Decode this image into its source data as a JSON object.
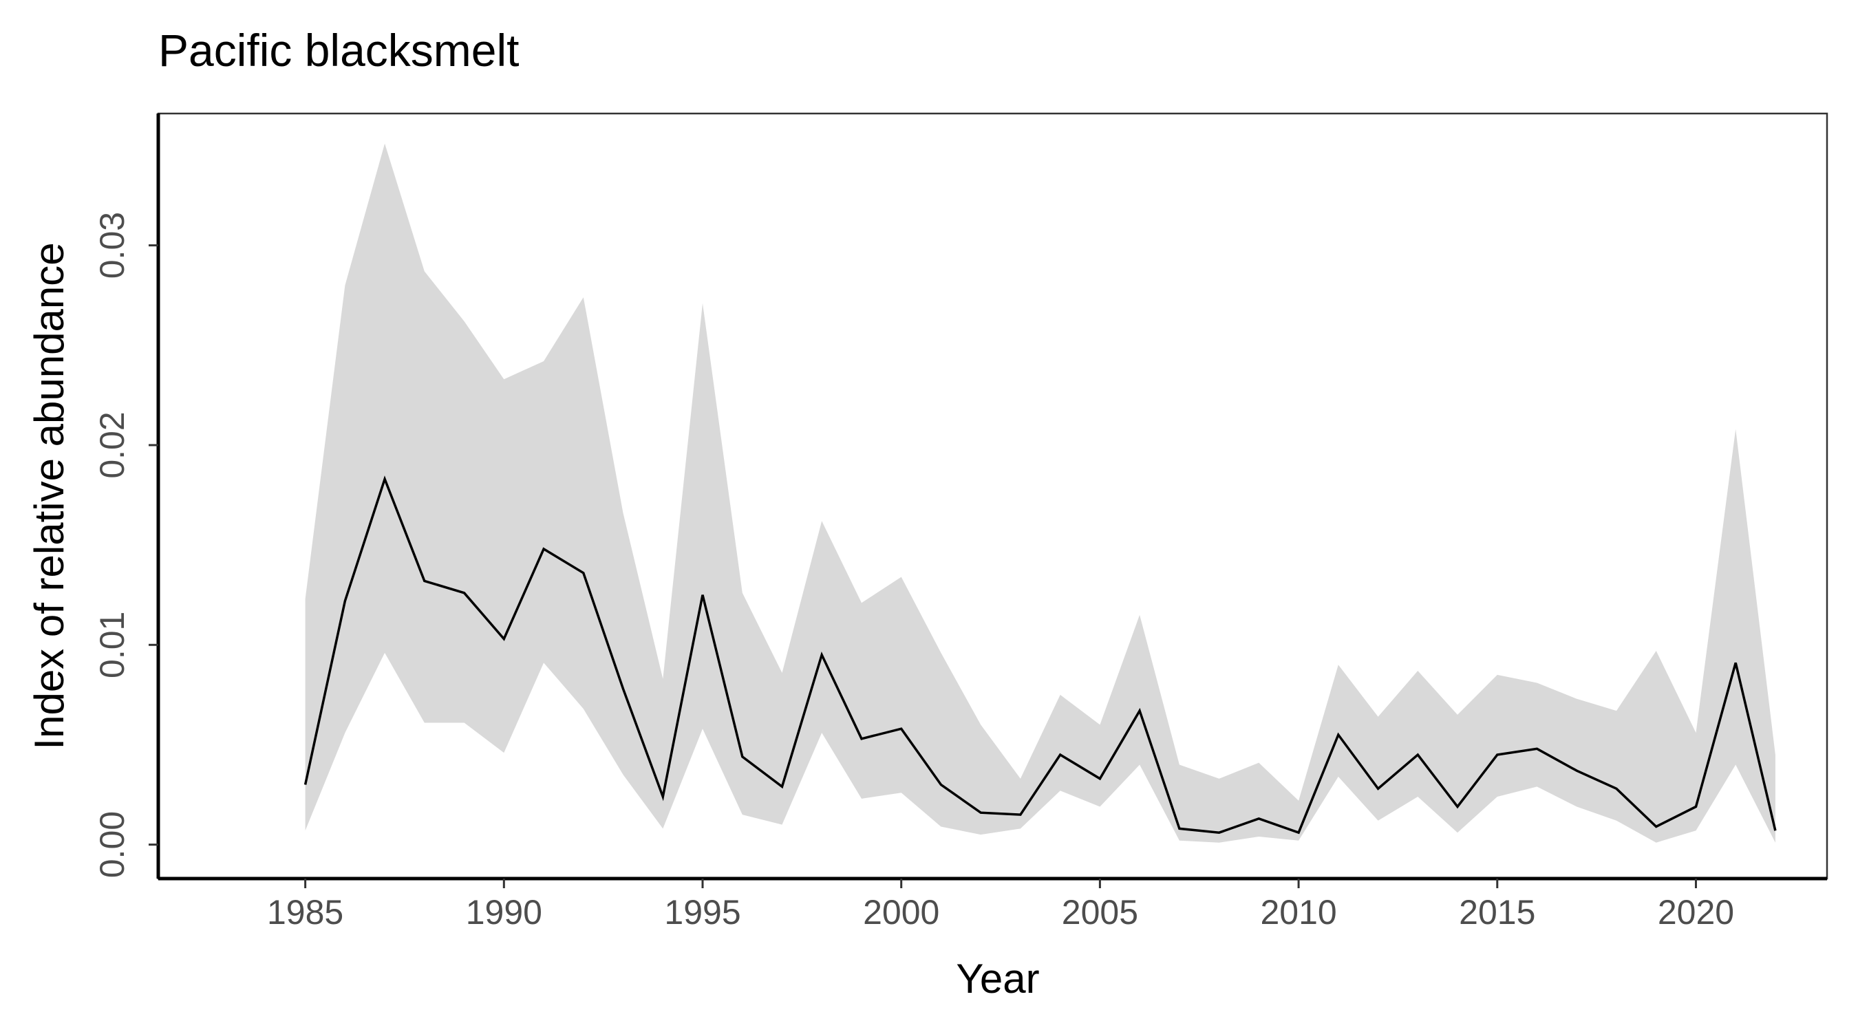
{
  "chart_data": {
    "type": "area",
    "title": "Pacific blacksmelt",
    "xlabel": "Year",
    "ylabel": "Index of relative abundance",
    "xlim": [
      1981.3,
      2023.3
    ],
    "ylim": [
      -0.0017,
      0.0366
    ],
    "x_ticks": [
      1985,
      1990,
      1995,
      2000,
      2005,
      2010,
      2015,
      2020
    ],
    "x_tick_labels": [
      "1985",
      "1990",
      "1995",
      "2000",
      "2005",
      "2010",
      "2015",
      "2020"
    ],
    "y_ticks": [
      0,
      0.01,
      0.02,
      0.03
    ],
    "y_tick_labels": [
      "0.00",
      "0.01",
      "0.02",
      "0.03"
    ],
    "grid": false,
    "legend": "none",
    "colors": {
      "band": "#d9d9d9",
      "line": "#000000"
    },
    "x": [
      1985,
      1986,
      1987,
      1988,
      1989,
      1990,
      1991,
      1992,
      1993,
      1994,
      1995,
      1996,
      1997,
      1998,
      1999,
      2000,
      2001,
      2002,
      2003,
      2004,
      2005,
      2006,
      2007,
      2008,
      2009,
      2010,
      2011,
      2012,
      2013,
      2014,
      2015,
      2016,
      2017,
      2018,
      2019,
      2020,
      2021,
      2022
    ],
    "series": [
      {
        "role": "estimate",
        "values": [
          0.003,
          0.0122,
          0.0183,
          0.0132,
          0.0126,
          0.0103,
          0.0148,
          0.0136,
          0.0078,
          0.0024,
          0.0125,
          0.0044,
          0.0029,
          0.0095,
          0.0053,
          0.0058,
          0.003,
          0.0016,
          0.0015,
          0.0045,
          0.0033,
          0.0067,
          0.0008,
          0.0006,
          0.0013,
          0.0006,
          0.0055,
          0.0028,
          0.0045,
          0.0019,
          0.0045,
          0.0048,
          0.0037,
          0.0028,
          0.0009,
          0.0019,
          0.0091,
          0.0007
        ]
      },
      {
        "role": "lower",
        "values": [
          0.0007,
          0.0056,
          0.0096,
          0.0061,
          0.0061,
          0.0046,
          0.0091,
          0.0068,
          0.0035,
          0.0008,
          0.0058,
          0.0015,
          0.001,
          0.0056,
          0.0023,
          0.0026,
          0.0009,
          0.0005,
          0.0008,
          0.0027,
          0.0019,
          0.004,
          0.0002,
          0.0001,
          0.0004,
          0.0002,
          0.0034,
          0.0012,
          0.0024,
          0.0006,
          0.0024,
          0.0029,
          0.0019,
          0.0012,
          0.0001,
          0.0007,
          0.004,
          0.0001
        ]
      },
      {
        "role": "upper",
        "values": [
          0.0123,
          0.028,
          0.0351,
          0.0287,
          0.0262,
          0.0233,
          0.0242,
          0.0274,
          0.0166,
          0.0083,
          0.0271,
          0.0126,
          0.0086,
          0.0162,
          0.0121,
          0.0134,
          0.0096,
          0.006,
          0.0033,
          0.0075,
          0.006,
          0.0115,
          0.004,
          0.0033,
          0.0041,
          0.0022,
          0.009,
          0.0064,
          0.0087,
          0.0065,
          0.0085,
          0.0081,
          0.0073,
          0.0067,
          0.0097,
          0.0056,
          0.0208,
          0.0045
        ]
      }
    ]
  }
}
